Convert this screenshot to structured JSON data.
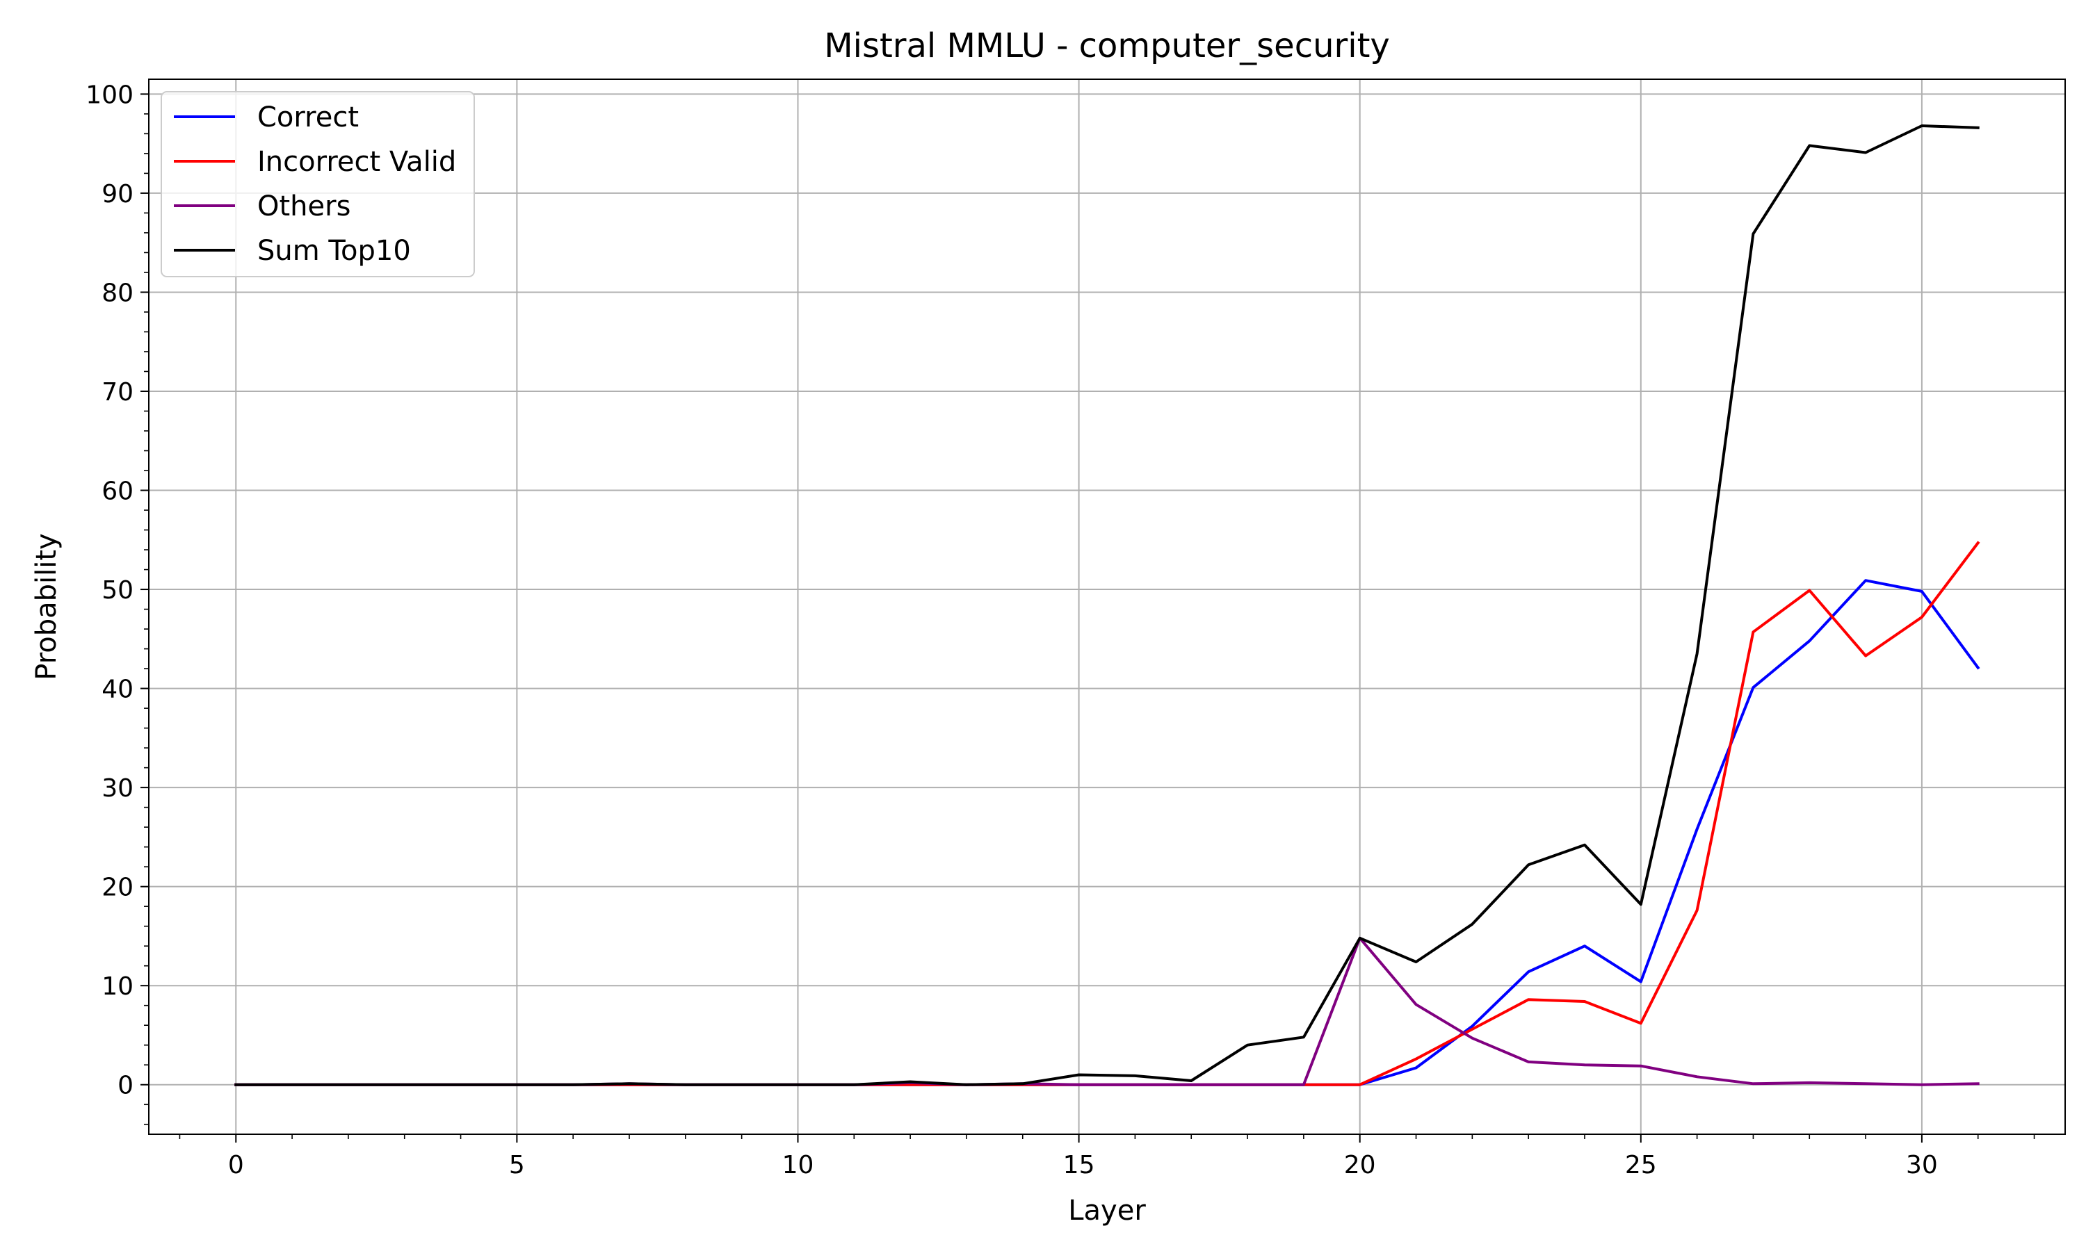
{
  "chart_data": {
    "type": "line",
    "title": "Mistral MMLU - computer_security",
    "xlabel": "Layer",
    "ylabel": "Probability",
    "xlim": [
      -1.55,
      32.55
    ],
    "ylim": [
      -5,
      101.5
    ],
    "xticks": [
      0,
      5,
      10,
      15,
      20,
      25,
      30
    ],
    "yticks": [
      0,
      10,
      20,
      30,
      40,
      50,
      60,
      70,
      80,
      90,
      100
    ],
    "grid": true,
    "legend_position": "top-left",
    "x": [
      0,
      1,
      2,
      3,
      4,
      5,
      6,
      7,
      8,
      9,
      10,
      11,
      12,
      13,
      14,
      15,
      16,
      17,
      18,
      19,
      20,
      21,
      22,
      23,
      24,
      25,
      26,
      27,
      28,
      29,
      30,
      31
    ],
    "series": [
      {
        "name": "Correct",
        "color": "#0000ff",
        "values": [
          0,
          0,
          0,
          0,
          0,
          0,
          0,
          0,
          0,
          0,
          0,
          0,
          0,
          0,
          0,
          0,
          0,
          0,
          0,
          0,
          0,
          1.7,
          5.9,
          11.4,
          14.0,
          10.4,
          25.8,
          40.1,
          44.8,
          50.9,
          49.8,
          42.1
        ]
      },
      {
        "name": "Incorrect Valid",
        "color": "#ff0000",
        "values": [
          0,
          0,
          0,
          0,
          0,
          0,
          0,
          0,
          0,
          0,
          0,
          0,
          0,
          0,
          0,
          0,
          0,
          0,
          0,
          0,
          0,
          2.6,
          5.6,
          8.6,
          8.4,
          6.2,
          17.6,
          45.7,
          49.9,
          43.3,
          47.2,
          54.7
        ]
      },
      {
        "name": "Others",
        "color": "#800080",
        "values": [
          0,
          0,
          0,
          0,
          0,
          0,
          0,
          0.1,
          0,
          0,
          0,
          0,
          0.2,
          0,
          0.1,
          0,
          0,
          0,
          0,
          0,
          14.8,
          8.1,
          4.7,
          2.3,
          2.0,
          1.9,
          0.8,
          0.1,
          0.2,
          0.1,
          0.0,
          0.1
        ]
      },
      {
        "name": "Sum Top10",
        "color": "#000000",
        "values": [
          0,
          0,
          0,
          0,
          0,
          0,
          0,
          0.1,
          0,
          0,
          0,
          0,
          0.3,
          0,
          0.1,
          1.0,
          0.9,
          0.4,
          4.0,
          4.8,
          14.8,
          12.4,
          16.2,
          22.2,
          24.2,
          18.2,
          43.5,
          85.9,
          94.8,
          94.1,
          96.8,
          96.6
        ]
      }
    ]
  }
}
